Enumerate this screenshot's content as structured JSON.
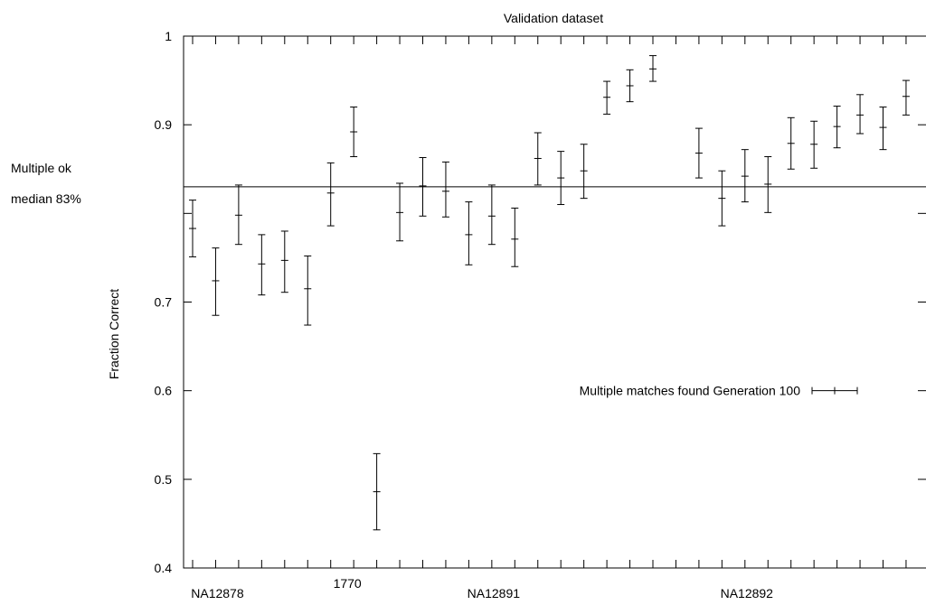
{
  "chart_data": {
    "type": "scatter",
    "title": "Validation dataset",
    "xlabel": "",
    "ylabel": "Fraction Correct",
    "ylim": [
      0.4,
      1.0
    ],
    "y_ticks": [
      "0.4",
      "0.5",
      "0.6",
      "0.7",
      "0.9",
      "1"
    ],
    "x_labels": [
      {
        "index": 2,
        "text": "NA12878"
      },
      {
        "index": 8,
        "text": "1770"
      },
      {
        "index": 14,
        "text": "NA12891"
      },
      {
        "index": 25,
        "text": "NA12892"
      }
    ],
    "grid": false,
    "legend": "center-right",
    "series": [
      {
        "name": "Multiple matches found Generation 100",
        "points": [
          {
            "x": 1,
            "y": 0.783,
            "low": 0.751,
            "high": 0.815
          },
          {
            "x": 2,
            "y": 0.724,
            "low": 0.685,
            "high": 0.761
          },
          {
            "x": 3,
            "y": 0.798,
            "low": 0.765,
            "high": 0.832
          },
          {
            "x": 4,
            "y": 0.743,
            "low": 0.708,
            "high": 0.776
          },
          {
            "x": 5,
            "y": 0.747,
            "low": 0.711,
            "high": 0.78
          },
          {
            "x": 6,
            "y": 0.715,
            "low": 0.674,
            "high": 0.752
          },
          {
            "x": 7,
            "y": 0.823,
            "low": 0.786,
            "high": 0.857
          },
          {
            "x": 8,
            "y": 0.892,
            "low": 0.864,
            "high": 0.92
          },
          {
            "x": 9,
            "y": 0.486,
            "low": 0.443,
            "high": 0.529
          },
          {
            "x": 10,
            "y": 0.801,
            "low": 0.769,
            "high": 0.834
          },
          {
            "x": 11,
            "y": 0.831,
            "low": 0.797,
            "high": 0.863
          },
          {
            "x": 12,
            "y": 0.825,
            "low": 0.796,
            "high": 0.858
          },
          {
            "x": 13,
            "y": 0.776,
            "low": 0.742,
            "high": 0.813
          },
          {
            "x": 14,
            "y": 0.797,
            "low": 0.765,
            "high": 0.832
          },
          {
            "x": 15,
            "y": 0.771,
            "low": 0.74,
            "high": 0.806
          },
          {
            "x": 16,
            "y": 0.862,
            "low": 0.832,
            "high": 0.891
          },
          {
            "x": 17,
            "y": 0.84,
            "low": 0.81,
            "high": 0.87
          },
          {
            "x": 18,
            "y": 0.848,
            "low": 0.817,
            "high": 0.878
          },
          {
            "x": 19,
            "y": 0.931,
            "low": 0.912,
            "high": 0.949
          },
          {
            "x": 20,
            "y": 0.944,
            "low": 0.926,
            "high": 0.962
          },
          {
            "x": 21,
            "y": 0.963,
            "low": 0.949,
            "high": 0.978
          },
          {
            "x": 23,
            "y": 0.868,
            "low": 0.84,
            "high": 0.896
          },
          {
            "x": 24,
            "y": 0.817,
            "low": 0.786,
            "high": 0.848
          },
          {
            "x": 25,
            "y": 0.842,
            "low": 0.813,
            "high": 0.872
          },
          {
            "x": 26,
            "y": 0.833,
            "low": 0.801,
            "high": 0.864
          },
          {
            "x": 27,
            "y": 0.879,
            "low": 0.85,
            "high": 0.908
          },
          {
            "x": 28,
            "y": 0.878,
            "low": 0.851,
            "high": 0.904
          },
          {
            "x": 29,
            "y": 0.898,
            "low": 0.874,
            "high": 0.921
          },
          {
            "x": 30,
            "y": 0.911,
            "low": 0.89,
            "high": 0.934
          },
          {
            "x": 31,
            "y": 0.897,
            "low": 0.872,
            "high": 0.92
          },
          {
            "x": 32,
            "y": 0.932,
            "low": 0.911,
            "high": 0.95
          }
        ]
      }
    ],
    "reference_line": {
      "y": 0.83
    },
    "annotation": {
      "line1": "Multiple ok",
      "line2": "median 83%"
    }
  }
}
